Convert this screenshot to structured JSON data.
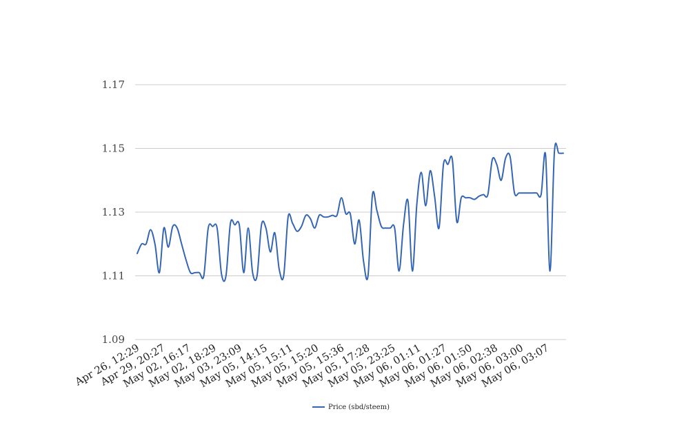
{
  "chart_data": {
    "type": "line",
    "title": "",
    "xlabel": "",
    "ylabel": "",
    "ylim": [
      1.09,
      1.17
    ],
    "y_ticks": [
      "1.17",
      "1.15",
      "1.13",
      "1.11",
      "1.09"
    ],
    "x_tick_labels": [
      "Apr 26, 12:29",
      "Apr 29, 20:27",
      "May 02, 16:17",
      "May 02, 18:29",
      "May 03, 23:09",
      "May 05, 14:15",
      "May 05, 15:11",
      "May 05, 15:20",
      "May 05, 15:36",
      "May 05, 17:28",
      "May 05, 23:25",
      "May 06, 01:11",
      "May 06, 01:27",
      "May 06, 01:50",
      "May 06, 02:38",
      "May 06, 03:00",
      "May 06, 03:07"
    ],
    "grid": "horizontal",
    "legend": "bottom",
    "series": [
      {
        "name": "Price (sbd/steem)",
        "color": "#3465b4",
        "values": [
          1.117,
          1.12,
          1.12,
          1.1245,
          1.12,
          1.111,
          1.125,
          1.119,
          1.1255,
          1.125,
          1.12,
          1.115,
          1.111,
          1.111,
          1.111,
          1.11,
          1.125,
          1.1255,
          1.125,
          1.1105,
          1.11,
          1.1265,
          1.126,
          1.126,
          1.111,
          1.125,
          1.111,
          1.11,
          1.126,
          1.125,
          1.1175,
          1.1235,
          1.112,
          1.11,
          1.1285,
          1.1265,
          1.124,
          1.1255,
          1.129,
          1.128,
          1.125,
          1.129,
          1.1285,
          1.1285,
          1.129,
          1.129,
          1.1345,
          1.1295,
          1.1295,
          1.12,
          1.1275,
          1.1145,
          1.11,
          1.1355,
          1.1305,
          1.1255,
          1.125,
          1.125,
          1.125,
          1.1115,
          1.126,
          1.1335,
          1.1115,
          1.1325,
          1.1425,
          1.132,
          1.143,
          1.135,
          1.125,
          1.145,
          1.145,
          1.1465,
          1.127,
          1.1345,
          1.1345,
          1.1345,
          1.134,
          1.135,
          1.1355,
          1.1355,
          1.1465,
          1.145,
          1.14,
          1.147,
          1.1475,
          1.136,
          1.136,
          1.136,
          1.136,
          1.136,
          1.136,
          1.1355,
          1.148,
          1.1115,
          1.149,
          1.1485,
          1.1485
        ]
      }
    ]
  }
}
